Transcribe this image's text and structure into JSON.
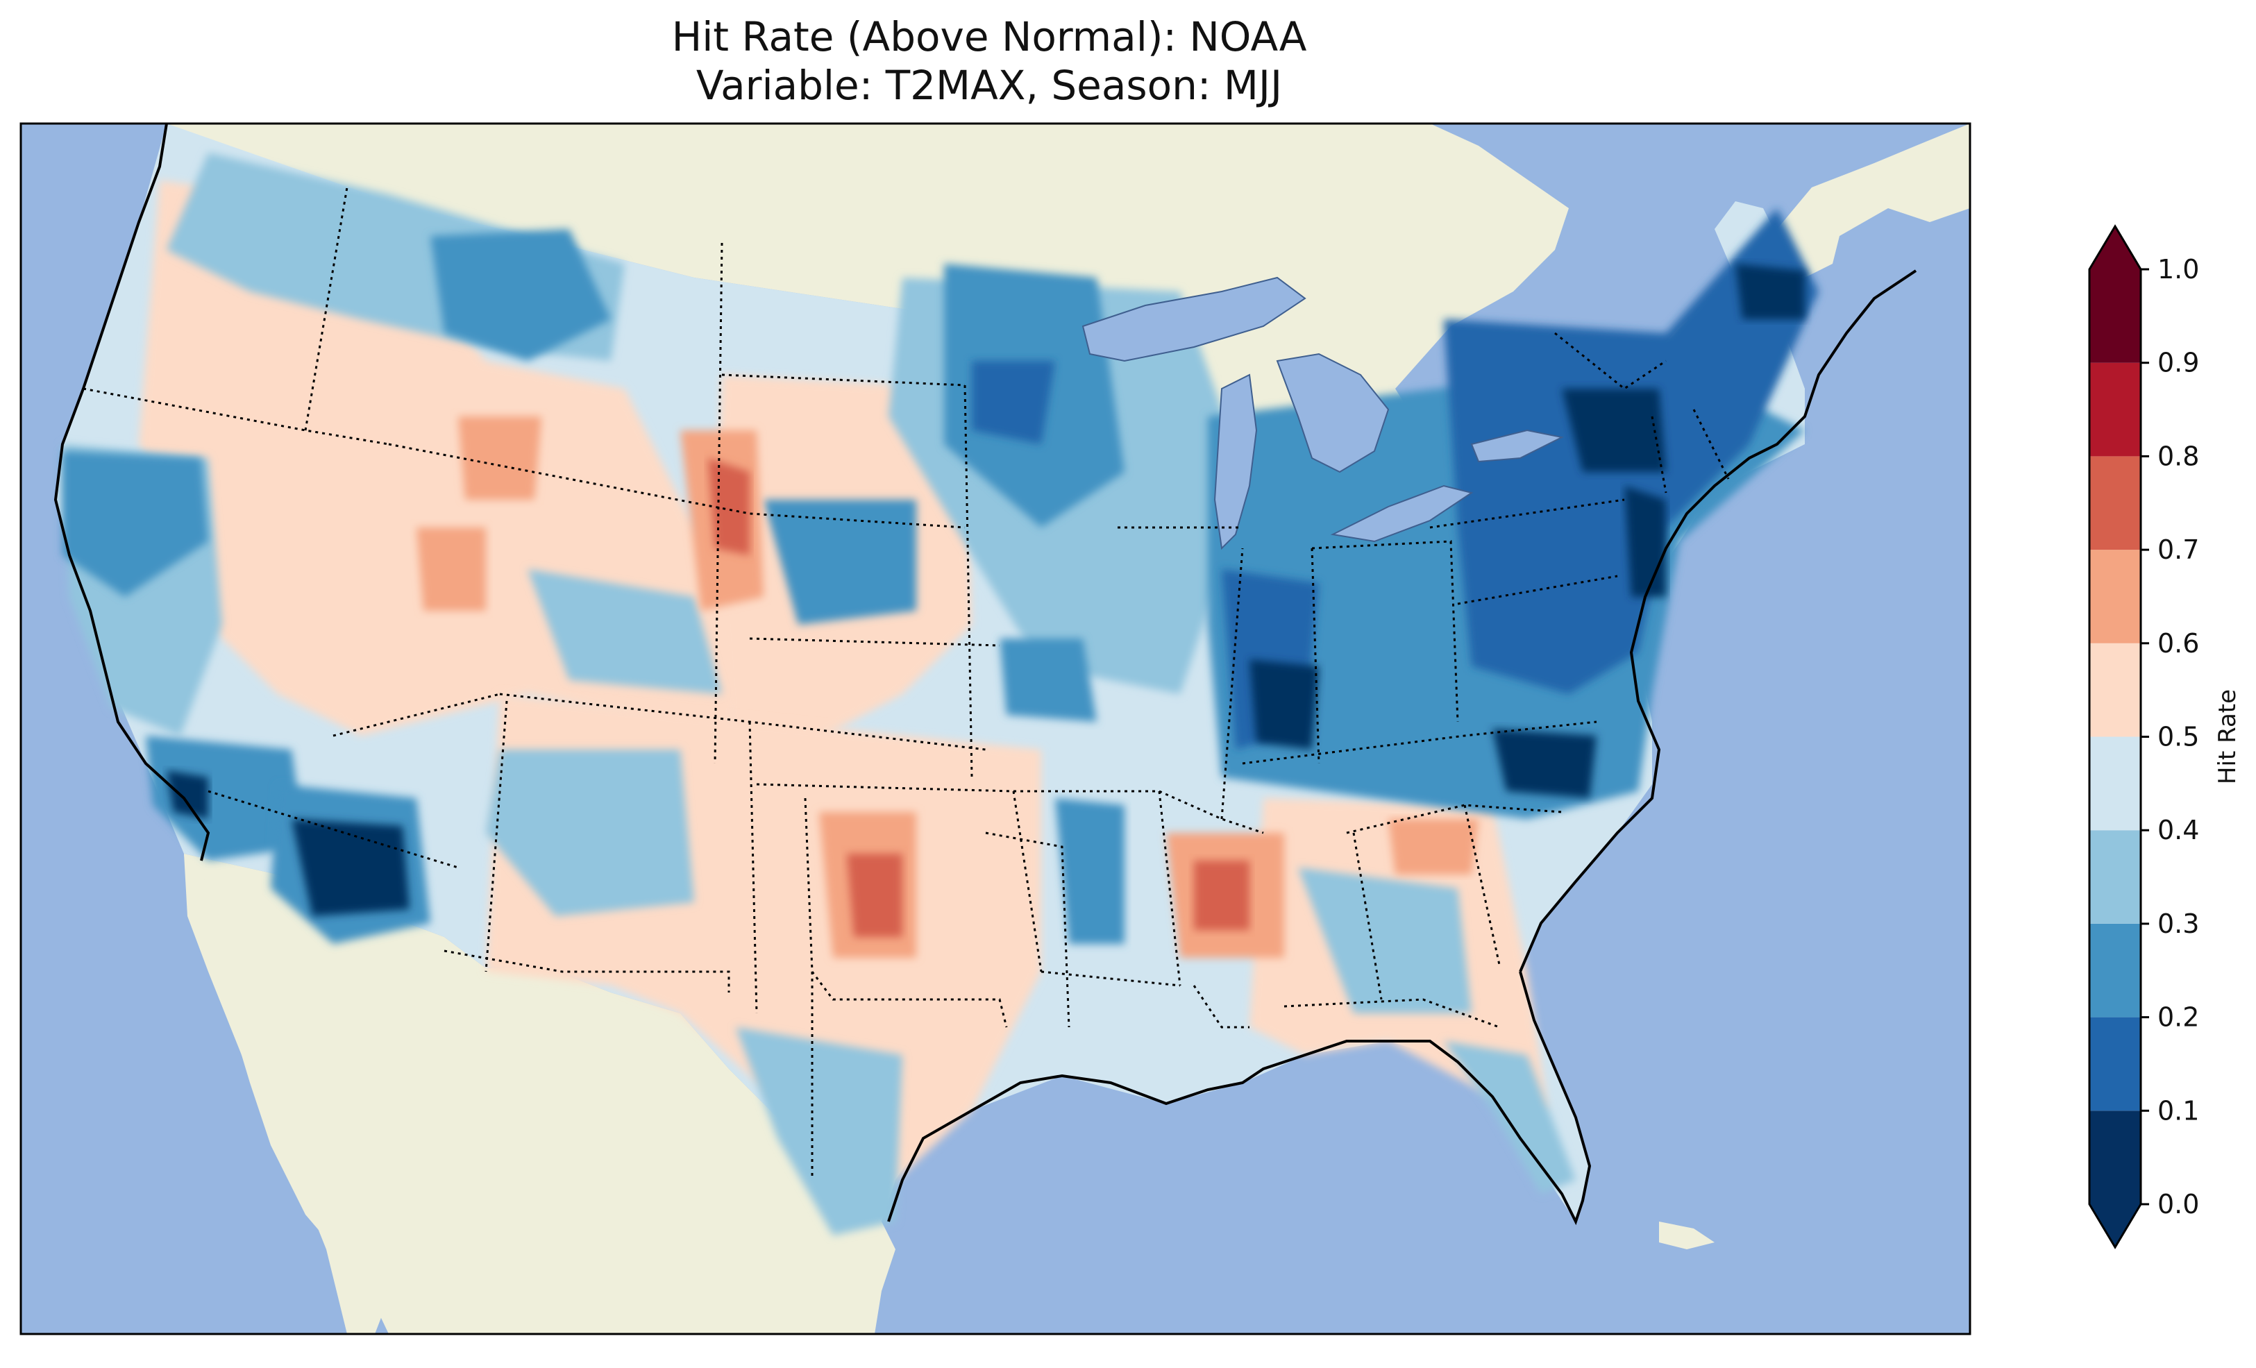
{
  "title": {
    "line1": "Hit Rate (Above Normal): NOAA",
    "line2": "Variable: T2MAX, Season: MJJ"
  },
  "colors": {
    "ocean": "#97b6e1",
    "land": "#efefdb",
    "lakes": "#97b6e1"
  },
  "colorbar": {
    "label": "Hit Rate",
    "ticks": [
      "0.0",
      "0.1",
      "0.2",
      "0.3",
      "0.4",
      "0.5",
      "0.6",
      "0.7",
      "0.8",
      "0.9",
      "1.0"
    ],
    "bins": [
      {
        "from": 0.0,
        "to": 0.1,
        "color": "#053061"
      },
      {
        "from": 0.1,
        "to": 0.2,
        "color": "#2166ac"
      },
      {
        "from": 0.2,
        "to": 0.3,
        "color": "#4393c3"
      },
      {
        "from": 0.3,
        "to": 0.4,
        "color": "#92c5de"
      },
      {
        "from": 0.4,
        "to": 0.5,
        "color": "#d1e5f0"
      },
      {
        "from": 0.5,
        "to": 0.6,
        "color": "#fddbc7"
      },
      {
        "from": 0.6,
        "to": 0.7,
        "color": "#f4a582"
      },
      {
        "from": 0.7,
        "to": 0.8,
        "color": "#d6604d"
      },
      {
        "from": 0.8,
        "to": 0.9,
        "color": "#b2182b"
      },
      {
        "from": 0.9,
        "to": 1.0,
        "color": "#67001f"
      }
    ],
    "under_color": "#053061",
    "over_color": "#67001f",
    "extend": "both"
  }
}
